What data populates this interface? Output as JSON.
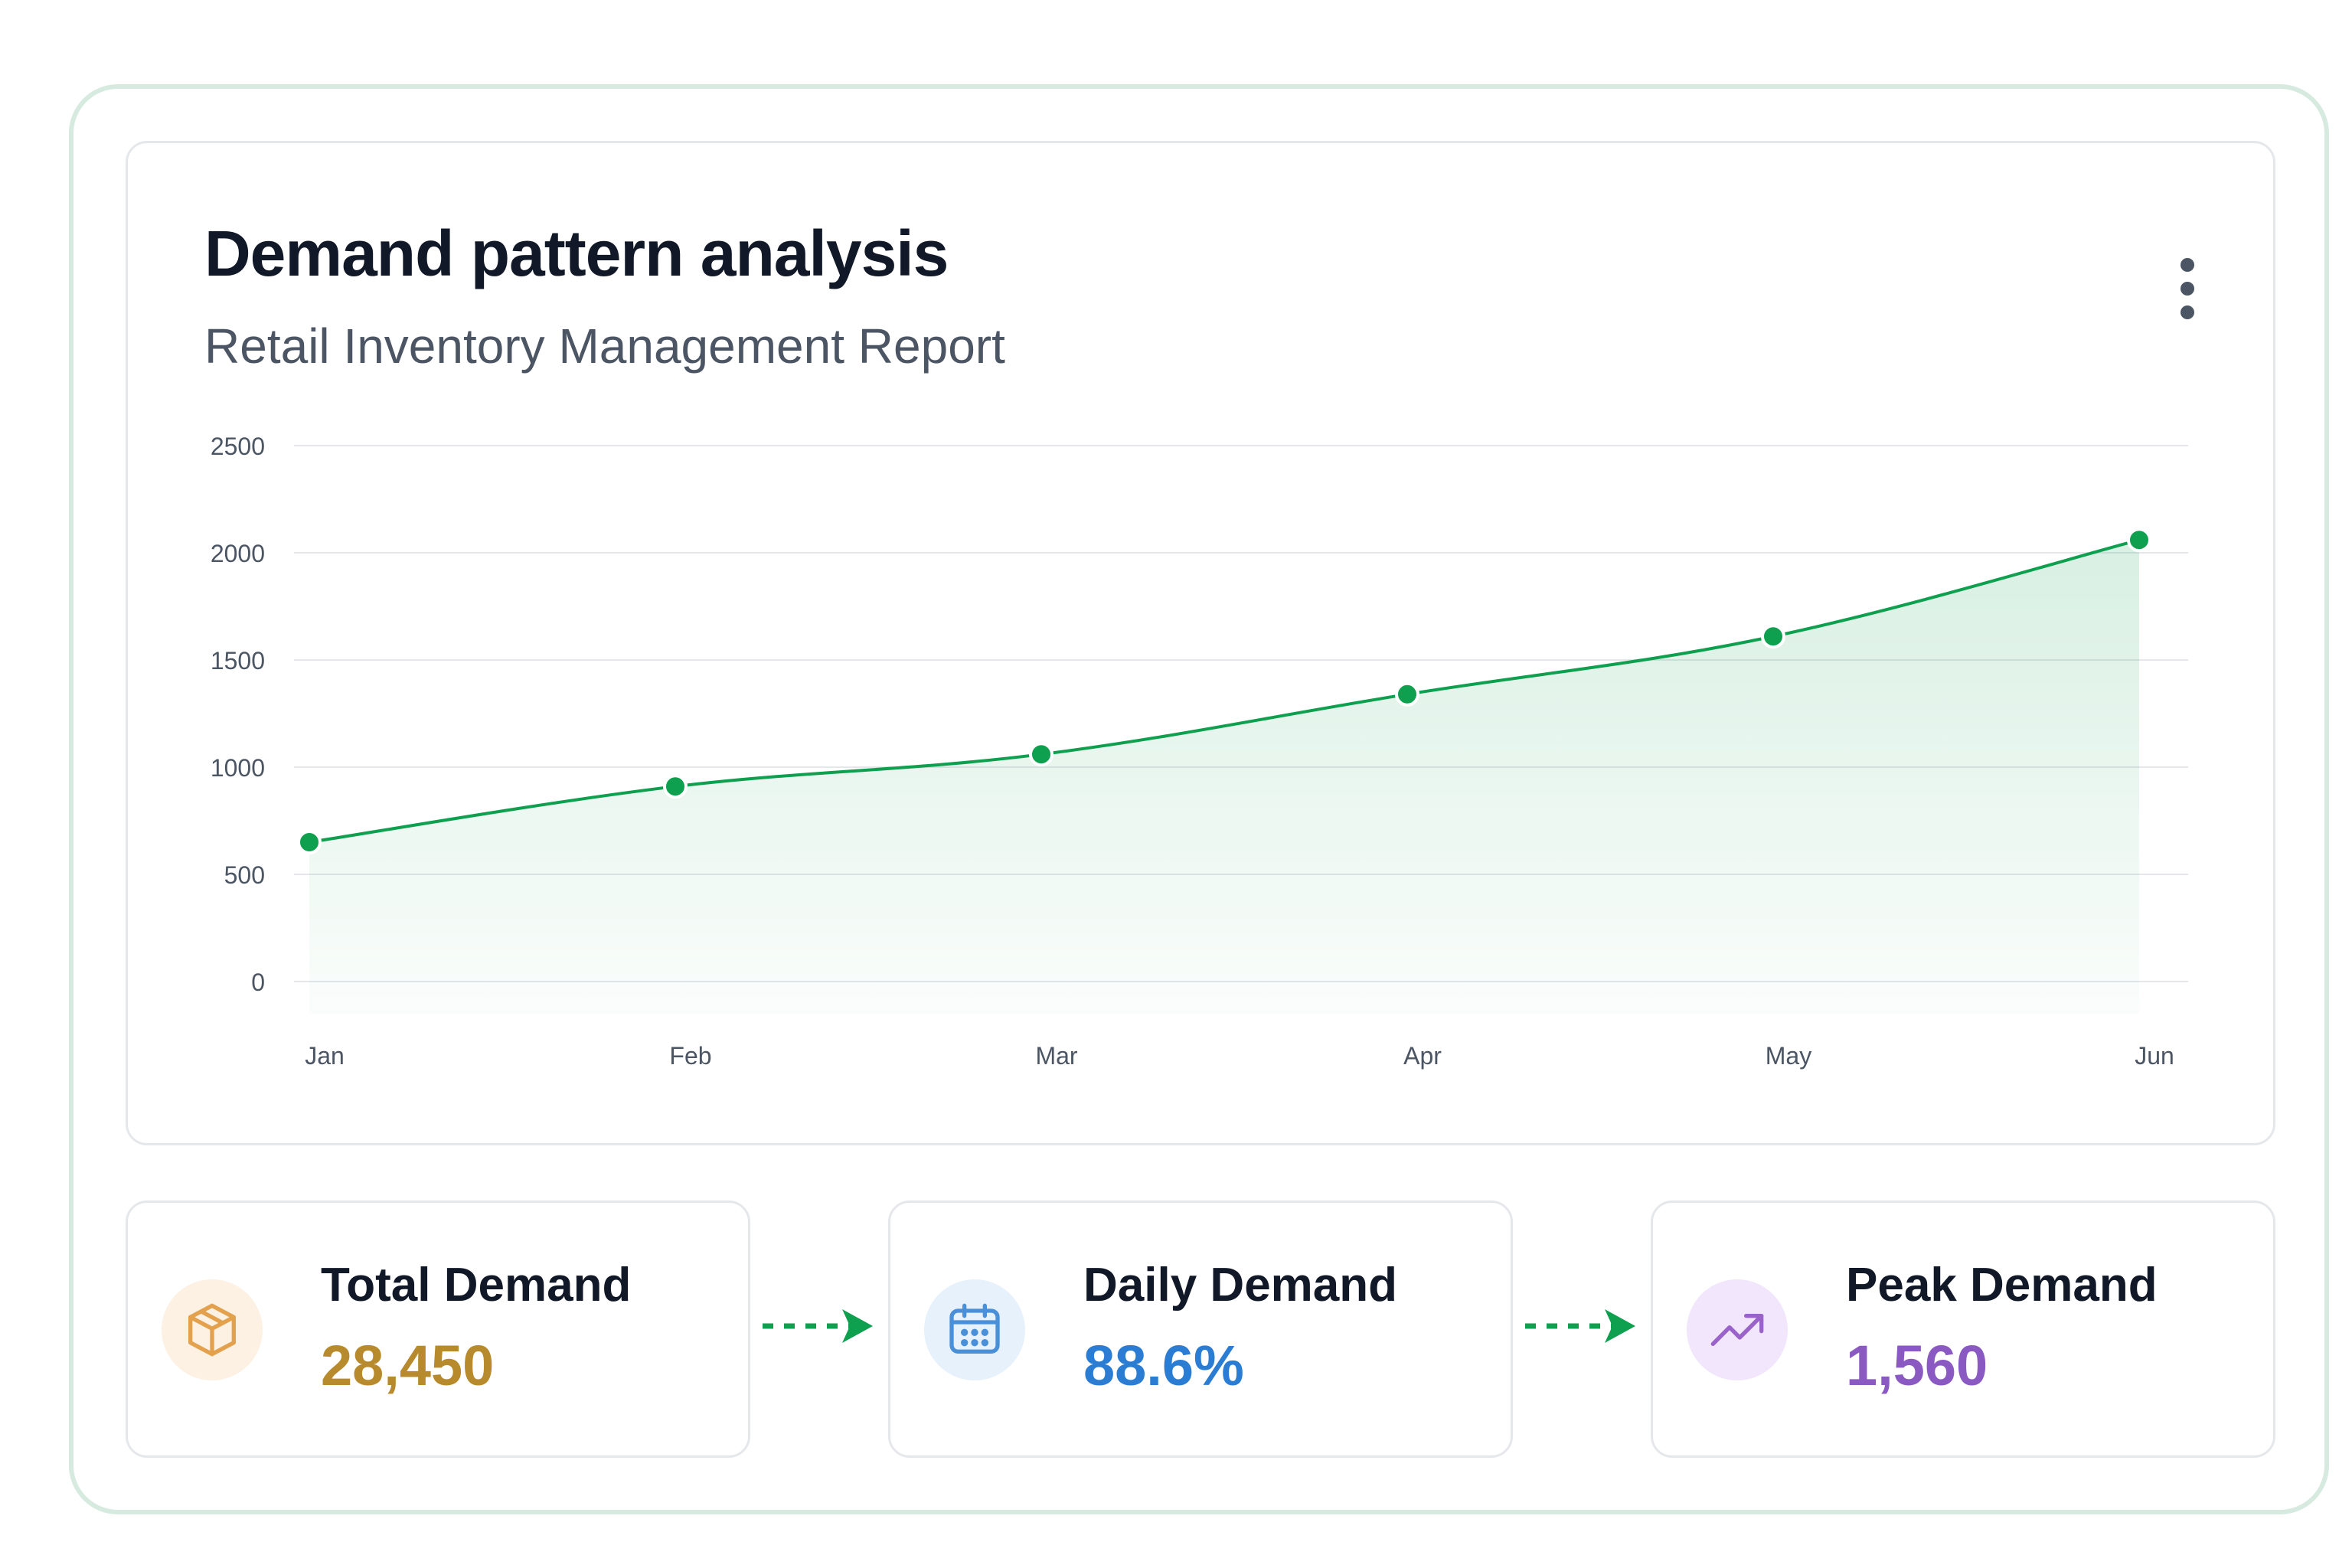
{
  "card": {
    "title": "Demand pattern analysis",
    "subtitle": "Retail Inventory Management Report",
    "menu_icon": "more-vertical-icon"
  },
  "chart_data": {
    "type": "area",
    "title": "",
    "xlabel": "",
    "ylabel": "",
    "categories": [
      "Jan",
      "Feb",
      "Mar",
      "Apr",
      "May",
      "Jun"
    ],
    "series": [
      {
        "values": [
          650,
          910,
          1060,
          1340,
          1610,
          2060
        ],
        "color": "#0e9f4f"
      }
    ],
    "ylim": [
      0,
      2500
    ],
    "yticks": [
      0,
      500,
      1000,
      1500,
      2000,
      2500
    ],
    "grid": true,
    "legend": "none"
  },
  "stats": [
    {
      "label": "Total Demand",
      "value": "28,450",
      "icon": "package-icon",
      "color": "#b88a2e",
      "icon_bg": "#fdf1e3",
      "icon_color": "#e3a14d"
    },
    {
      "label": "Daily Demand",
      "value": "88.6%",
      "icon": "calendar-icon",
      "color": "#2b7cd3",
      "icon_bg": "#e6f1fb",
      "icon_color": "#4a90d9"
    },
    {
      "label": "Peak Demand",
      "value": "1,560",
      "icon": "trending-up-icon",
      "color": "#8a5ac2",
      "icon_bg": "#f1e6fb",
      "icon_color": "#9a63c9"
    }
  ],
  "flow_arrow_color": "#0e9f4f"
}
